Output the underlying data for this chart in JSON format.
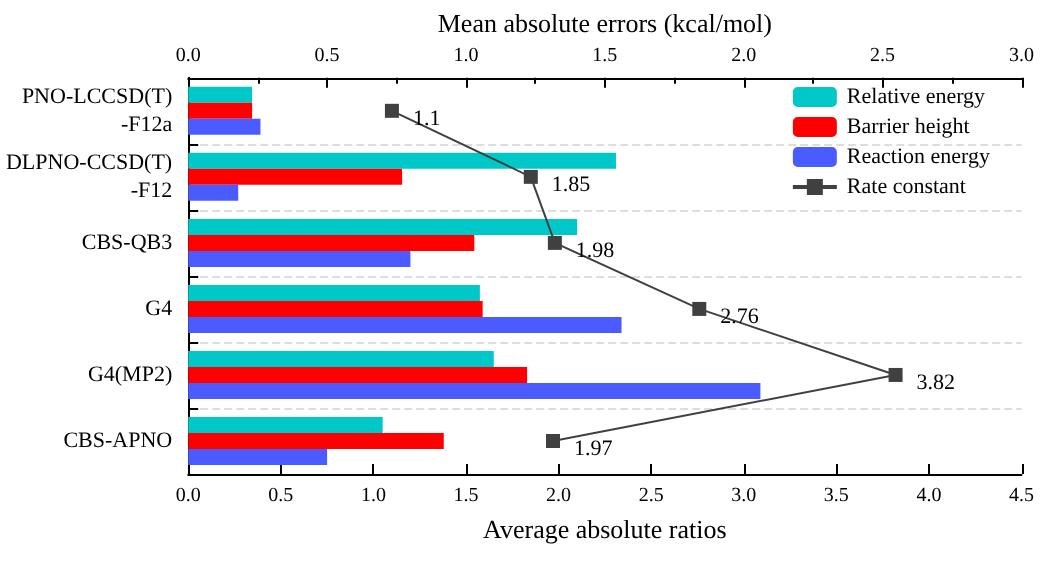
{
  "chart_data": {
    "type": "bar",
    "orientation": "horizontal",
    "xlabel": "Average absolute ratios",
    "x2label": "Mean absolute errors (kcal/mol)",
    "categories": [
      "PNO-LCCSD(T)\n-F12a",
      "DLPNO-CCSD(T)\n-F12",
      "CBS-QB3",
      "G4",
      "G4(MP2)",
      "CBS-APNO"
    ],
    "series": [
      {
        "name": "Relative energy",
        "color": "#00c8c8",
        "axis": "x2",
        "values": [
          0.23,
          1.54,
          1.4,
          1.05,
          1.1,
          0.7
        ]
      },
      {
        "name": "Barrier height",
        "color": "#ff0000",
        "axis": "x2",
        "values": [
          0.23,
          0.77,
          1.03,
          1.06,
          1.22,
          0.92
        ]
      },
      {
        "name": "Reaction energy",
        "color": "#4a5cff",
        "axis": "x2",
        "values": [
          0.26,
          0.18,
          0.8,
          1.56,
          2.06,
          0.5
        ]
      },
      {
        "name": "Rate constant",
        "type": "line",
        "color": "#404040",
        "marker": "square",
        "data_labels": true,
        "values": [
          1.1,
          1.85,
          1.98,
          2.76,
          3.82,
          1.97
        ]
      }
    ],
    "xlim": [
      0,
      4.5
    ],
    "xticks": [
      {
        "value": 0,
        "label": "0.0"
      },
      {
        "value": 0.5,
        "label": "0.5"
      },
      {
        "value": 1,
        "label": "1.0"
      },
      {
        "value": 1.5,
        "label": "1.5"
      },
      {
        "value": 2,
        "label": "2.0"
      },
      {
        "value": 2.5,
        "label": "2.5"
      },
      {
        "value": 3,
        "label": "3.0"
      },
      {
        "value": 3.5,
        "label": "3.5"
      },
      {
        "value": 4,
        "label": "4.0"
      },
      {
        "value": 4.5,
        "label": "4.5"
      }
    ],
    "x2lim": [
      0,
      3
    ],
    "x2ticks": [
      {
        "value": 0,
        "label": "0.0"
      },
      {
        "value": 0.5,
        "label": "0.5"
      },
      {
        "value": 1,
        "label": "1.0"
      },
      {
        "value": 1.5,
        "label": "1.5"
      },
      {
        "value": 2,
        "label": "2.0"
      },
      {
        "value": 2.5,
        "label": "2.5"
      },
      {
        "value": 3,
        "label": "3.0"
      }
    ],
    "grid": "y",
    "legend": "top right"
  }
}
